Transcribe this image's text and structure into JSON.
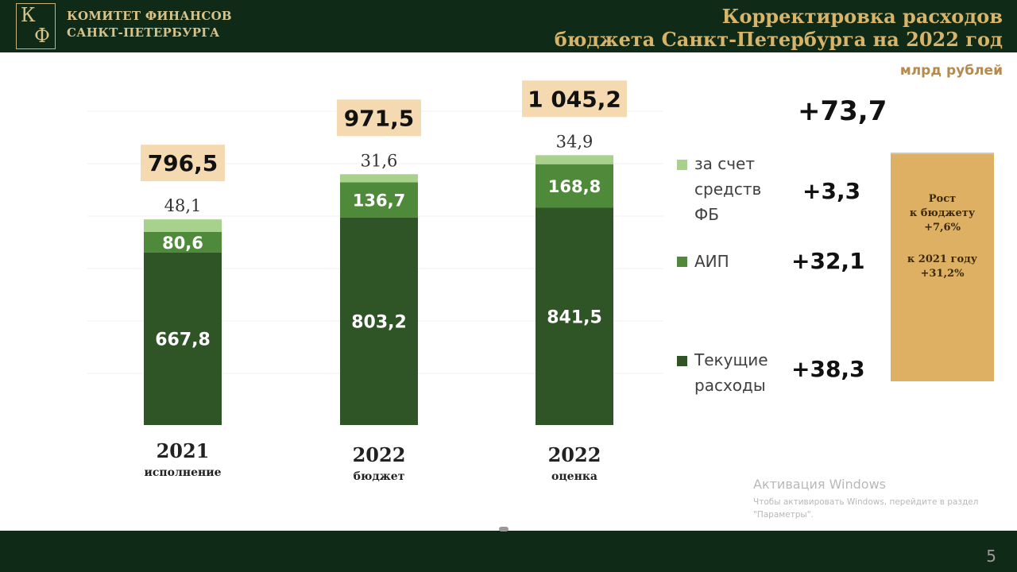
{
  "header": {
    "org_line1": "КОМИТЕТ ФИНАНСОВ",
    "org_line2": "САНКТ-ПЕТЕРБУРГА",
    "logo_letter1": "К",
    "logo_letter2": "Ф",
    "title_line1": "Корректировка расходов",
    "title_line2": "бюджета Санкт-Петербурга на 2022 год"
  },
  "units": "млрд рублей",
  "chart_data": {
    "type": "bar",
    "stacked": true,
    "categories": [
      {
        "year": "2021",
        "sub": "исполнение"
      },
      {
        "year": "2022",
        "sub": "бюджет"
      },
      {
        "year": "2022",
        "sub": "оценка"
      }
    ],
    "totals": [
      "796,5",
      "971,5",
      "1 045,2"
    ],
    "series": [
      {
        "name": "Текущие расходы",
        "values": [
          667.8,
          803.2,
          841.5
        ],
        "labels": [
          "667,8",
          "803,2",
          "841,5"
        ],
        "color": "#2f5426"
      },
      {
        "name": "АИП",
        "values": [
          80.6,
          136.7,
          168.8
        ],
        "labels": [
          "80,6",
          "136,7",
          "168,8"
        ],
        "color": "#4f8a3b"
      },
      {
        "name": "за счет средств ФБ",
        "values": [
          48.1,
          31.6,
          34.9
        ],
        "labels": [
          "48,1",
          "31,6",
          "34,9"
        ],
        "color": "#a9d18e"
      }
    ],
    "total_box_color": "#f5d9b0",
    "grid": true,
    "legend_position": "right"
  },
  "legend": [
    {
      "lines": [
        "за счет",
        "средств",
        "ФБ"
      ],
      "color": "#a9d18e",
      "increment": "+3,3"
    },
    {
      "lines": [
        "АИП"
      ],
      "color": "#4f8a3b",
      "increment": "+32,1"
    },
    {
      "lines": [
        "Текущие",
        "расходы"
      ],
      "color": "#2f5426",
      "increment": "+38,3"
    }
  ],
  "total_increment": "+73,7",
  "growth": {
    "line1": "Рост",
    "line2": "к бюджету",
    "line3": "+7,6%",
    "line4": "к 2021 году",
    "line5": "+31,2%",
    "color": "#deb063"
  },
  "watermark": {
    "title": "Активация Windows",
    "line1": "Чтобы активировать Windows, перейдите в раздел",
    "line2": "\"Параметры\"."
  },
  "page_number": "5"
}
